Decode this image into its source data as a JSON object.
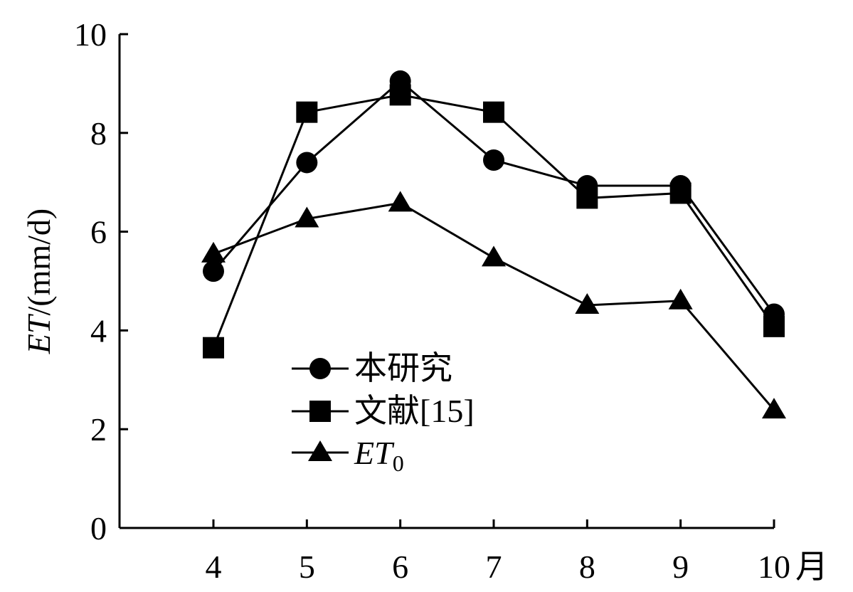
{
  "chart_data": {
    "type": "line",
    "x": [
      4,
      5,
      6,
      7,
      8,
      9,
      10
    ],
    "x_tick_labels": [
      "4",
      "5",
      "6",
      "7",
      "8",
      "9",
      "10"
    ],
    "x_unit": "月",
    "y_ticks": [
      0,
      2,
      4,
      6,
      8,
      10
    ],
    "y_tick_labels": [
      "0",
      "2",
      "4",
      "6",
      "8",
      "10"
    ],
    "ylim": [
      0,
      10
    ],
    "ylabel_italic": "ET",
    "ylabel_rest": "/(mm/d)",
    "legend_position": "center-left",
    "grid": false,
    "series": [
      {
        "name": "本研究",
        "marker": "circle",
        "values": [
          5.2,
          7.4,
          9.05,
          7.45,
          6.93,
          6.93,
          4.33
        ]
      },
      {
        "name": "文献[15]",
        "marker": "square",
        "values": [
          3.65,
          8.42,
          8.77,
          8.42,
          6.68,
          6.78,
          4.08
        ]
      },
      {
        "name": "ET",
        "name_subscript": "0",
        "name_italic": true,
        "marker": "triangle",
        "values": [
          5.55,
          6.26,
          6.58,
          5.47,
          4.51,
          4.6,
          2.39
        ]
      }
    ]
  }
}
